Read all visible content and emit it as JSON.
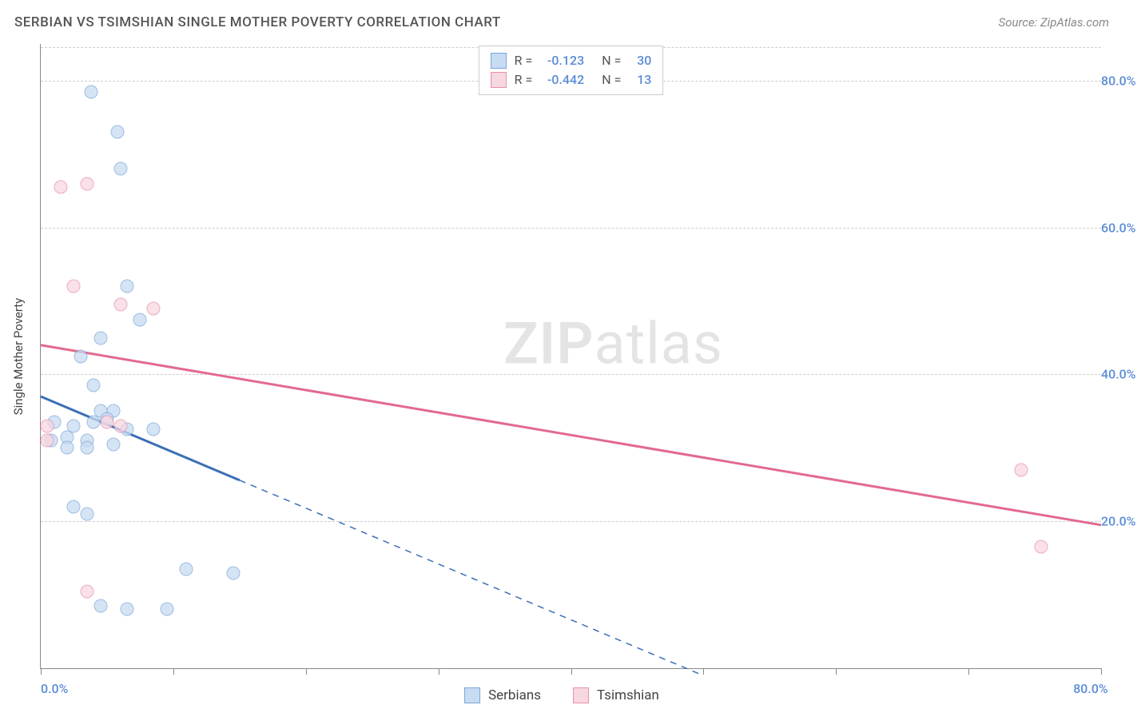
{
  "header": {
    "title": "SERBIAN VS TSIMSHIAN SINGLE MOTHER POVERTY CORRELATION CHART",
    "source_prefix": "Source: ",
    "source_name": "ZipAtlas.com"
  },
  "watermark": {
    "zip": "ZIP",
    "atlas": "atlas"
  },
  "chart": {
    "type": "scatter",
    "background_color": "#ffffff",
    "grid_color": "#cccccc",
    "axis_color": "#888888",
    "ylabel": "Single Mother Poverty",
    "label_fontsize": 15,
    "label_color": "#444444",
    "tick_fontsize": 16,
    "tick_color": "#5b8dd6",
    "xlim": [
      0,
      80
    ],
    "ylim": [
      0,
      85
    ],
    "yticks": [
      20,
      40,
      60,
      80
    ],
    "ytick_labels": [
      "20.0%",
      "40.0%",
      "60.0%",
      "80.0%"
    ],
    "xticks": [
      0,
      10,
      20,
      30,
      40,
      50,
      60,
      70,
      80
    ],
    "xtick_labels_show": {
      "0": "0.0%",
      "80": "80.0%"
    },
    "marker_size": 17,
    "series": [
      {
        "name": "Serbians",
        "fill_color": "#c7dbf2",
        "border_color": "#7ba7d9",
        "fill_opacity": 0.75,
        "points": [
          [
            3.8,
            78.5
          ],
          [
            5.8,
            73.0
          ],
          [
            6.0,
            68.0
          ],
          [
            6.5,
            52.0
          ],
          [
            7.5,
            47.5
          ],
          [
            4.5,
            45.0
          ],
          [
            3.0,
            42.5
          ],
          [
            4.0,
            38.5
          ],
          [
            4.5,
            35.0
          ],
          [
            5.5,
            35.0
          ],
          [
            1.0,
            33.5
          ],
          [
            2.5,
            33.0
          ],
          [
            4.0,
            33.5
          ],
          [
            5.0,
            34.0
          ],
          [
            6.5,
            32.5
          ],
          [
            8.5,
            32.5
          ],
          [
            0.8,
            31.0
          ],
          [
            2.0,
            31.5
          ],
          [
            3.5,
            31.0
          ],
          [
            2.0,
            30.0
          ],
          [
            3.5,
            30.0
          ],
          [
            5.5,
            30.5
          ],
          [
            2.5,
            22.0
          ],
          [
            3.5,
            21.0
          ],
          [
            11.0,
            13.5
          ],
          [
            14.5,
            13.0
          ],
          [
            4.5,
            8.5
          ],
          [
            6.5,
            8.0
          ],
          [
            9.5,
            8.0
          ]
        ],
        "trend": {
          "start": [
            0,
            37
          ],
          "end": [
            50,
            -1
          ],
          "solid_until_x": 15,
          "color": "#3b6fb5",
          "width": 3
        }
      },
      {
        "name": "Tsimshian",
        "fill_color": "#f7d7e0",
        "border_color": "#e890ac",
        "fill_opacity": 0.75,
        "points": [
          [
            1.5,
            65.5
          ],
          [
            3.5,
            66.0
          ],
          [
            2.5,
            52.0
          ],
          [
            6.0,
            49.5
          ],
          [
            8.5,
            49.0
          ],
          [
            0.5,
            33.0
          ],
          [
            5.0,
            33.5
          ],
          [
            6.0,
            33.0
          ],
          [
            0.5,
            31.0
          ],
          [
            74.0,
            27.0
          ],
          [
            75.5,
            16.5
          ],
          [
            3.5,
            10.5
          ]
        ],
        "trend": {
          "start": [
            0,
            44
          ],
          "end": [
            80,
            19.5
          ],
          "solid_until_x": 80,
          "color": "#e26a8f",
          "width": 3
        }
      }
    ],
    "stats": [
      {
        "r_label": "R =",
        "r": "-0.123",
        "n_label": "N =",
        "n": "30",
        "swatch_fill": "#c7dbf2",
        "swatch_border": "#7ba7d9"
      },
      {
        "r_label": "R =",
        "r": "-0.442",
        "n_label": "N =",
        "n": "13",
        "swatch_fill": "#f7d7e0",
        "swatch_border": "#e890ac"
      }
    ]
  }
}
